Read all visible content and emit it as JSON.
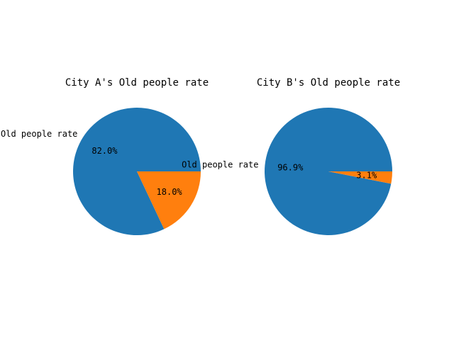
{
  "chart_data": [
    {
      "type": "pie",
      "title": "City A's Old people rate",
      "slices": [
        {
          "label": "Old people rate",
          "value": 82.0,
          "pct_label": "82.0%",
          "color": "#1f77b4"
        },
        {
          "label": "",
          "value": 18.0,
          "pct_label": "18.0%",
          "color": "#ff7f0e"
        }
      ]
    },
    {
      "type": "pie",
      "title": "City B's Old people rate",
      "slices": [
        {
          "label": "Old people rate",
          "value": 96.9,
          "pct_label": "96.9%",
          "color": "#1f77b4"
        },
        {
          "label": "",
          "value": 3.1,
          "pct_label": "3.1%",
          "color": "#ff7f0e"
        }
      ]
    }
  ]
}
